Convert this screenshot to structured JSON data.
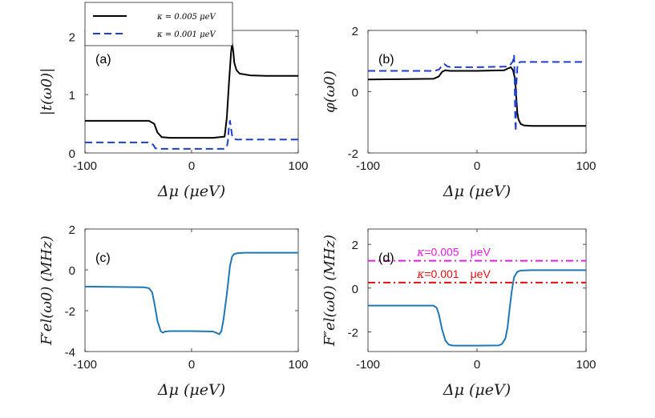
{
  "chart_data": [
    {
      "id": "a",
      "type": "line",
      "panel_label": "(a)",
      "xlabel": "Δμ (μeV)",
      "ylabel": "|t(ω0)|",
      "xlim": [
        -100,
        100
      ],
      "ylim": [
        0,
        2.1
      ],
      "xticks": [
        -100,
        0,
        100
      ],
      "xtick_labels": [
        "-100",
        "0",
        "100"
      ],
      "yticks": [
        0,
        1,
        2
      ],
      "ytick_labels": [
        "0",
        "1",
        "2"
      ],
      "legend": {
        "position": "top-left",
        "entries": [
          "κ = 0.005 μeV",
          "κ = 0.001 μeV"
        ]
      },
      "series": [
        {
          "name": "κ = 0.005 μeV",
          "color": "#000000",
          "style": "solid",
          "x": [
            -100,
            -40,
            -35,
            -32,
            -28,
            -20,
            0,
            20,
            31,
            33,
            35,
            37,
            38,
            39,
            40,
            42,
            45,
            55,
            70,
            100
          ],
          "y": [
            0.55,
            0.55,
            0.5,
            0.35,
            0.27,
            0.26,
            0.26,
            0.26,
            0.28,
            0.6,
            1.2,
            1.72,
            1.88,
            1.75,
            1.55,
            1.42,
            1.36,
            1.33,
            1.32,
            1.32
          ]
        },
        {
          "name": "κ = 0.001 μeV",
          "color": "#1f3fcf",
          "style": "dashed",
          "x": [
            -100,
            -40,
            -36,
            -34,
            -30,
            0,
            30,
            33,
            34,
            35,
            36,
            37,
            38,
            39,
            40,
            42,
            100
          ],
          "y": [
            0.18,
            0.18,
            0.14,
            0.08,
            0.07,
            0.07,
            0.07,
            0.1,
            0.2,
            0.45,
            0.55,
            0.42,
            0.3,
            0.26,
            0.24,
            0.23,
            0.23
          ]
        }
      ]
    },
    {
      "id": "b",
      "type": "line",
      "panel_label": "(b)",
      "xlabel": "Δμ (μeV)",
      "ylabel": "φ(ω0)",
      "xlim": [
        -100,
        100
      ],
      "ylim": [
        -2,
        2
      ],
      "xticks": [
        -100,
        0,
        100
      ],
      "xtick_labels": [
        "-100",
        "0",
        "100"
      ],
      "yticks": [
        -2,
        0,
        2
      ],
      "ytick_labels": [
        "-2",
        "0",
        "2"
      ],
      "series": [
        {
          "name": "κ = 0.005 μeV",
          "color": "#000000",
          "style": "solid",
          "x": [
            -100,
            -40,
            -35,
            -32,
            -29,
            -25,
            0,
            25,
            31,
            33,
            35,
            36,
            37,
            38,
            40,
            43,
            50,
            70,
            100
          ],
          "y": [
            0.4,
            0.42,
            0.5,
            0.65,
            0.7,
            0.68,
            0.68,
            0.7,
            0.8,
            0.7,
            0.4,
            -0.2,
            -0.7,
            -0.9,
            -1.05,
            -1.1,
            -1.12,
            -1.12,
            -1.12
          ]
        },
        {
          "name": "κ = 0.001 μeV",
          "color": "#1f3fcf",
          "style": "dashed",
          "x": [
            -100,
            -40,
            -35,
            -32,
            -30,
            -27,
            -24,
            0,
            28,
            31,
            33,
            34,
            34.5,
            35,
            35.5,
            36,
            37,
            38,
            40,
            45,
            100
          ],
          "y": [
            0.68,
            0.68,
            0.72,
            0.85,
            0.9,
            0.82,
            0.8,
            0.8,
            0.82,
            0.9,
            1.0,
            1.2,
            0.5,
            -0.8,
            -1.3,
            0.2,
            0.8,
            0.95,
            0.97,
            0.97,
            0.97
          ]
        }
      ]
    },
    {
      "id": "c",
      "type": "line",
      "panel_label": "(c)",
      "xlabel": "Δμ (μeV)",
      "ylabel": "F′el(ω0) (MHz)",
      "xlim": [
        -100,
        100
      ],
      "ylim": [
        -4,
        2
      ],
      "xticks": [
        -100,
        0,
        100
      ],
      "xtick_labels": [
        "-100",
        "0",
        "100"
      ],
      "yticks": [
        -4,
        -2,
        0,
        2
      ],
      "ytick_labels": [
        "-4",
        "-2",
        "0",
        "2"
      ],
      "series": [
        {
          "name": "F′el",
          "color": "#1f77b4",
          "style": "solid",
          "x": [
            -100,
            -45,
            -40,
            -37,
            -35,
            -32,
            -29,
            -27,
            -25,
            -20,
            0,
            20,
            24,
            26,
            28,
            30,
            33,
            36,
            38,
            40,
            43,
            50,
            100
          ],
          "y": [
            -0.82,
            -0.85,
            -0.9,
            -1.1,
            -1.6,
            -2.5,
            -3.0,
            -3.08,
            -3.02,
            -3.0,
            -3.0,
            -3.02,
            -3.1,
            -3.15,
            -3.0,
            -2.4,
            -1.2,
            0.2,
            0.65,
            0.78,
            0.82,
            0.84,
            0.84
          ]
        }
      ]
    },
    {
      "id": "d",
      "type": "line",
      "panel_label": "(d)",
      "xlabel": "Δμ (μeV)",
      "ylabel": "F″el(ω0) (MHz)",
      "xlim": [
        -100,
        100
      ],
      "ylim": [
        -2.9,
        2.7
      ],
      "xticks": [
        -100,
        0,
        100
      ],
      "xtick_labels": [
        "-100",
        "0",
        "100"
      ],
      "yticks": [
        -2,
        0,
        2
      ],
      "ytick_labels": [
        "-2",
        "0",
        "2"
      ],
      "series": [
        {
          "name": "F″el",
          "color": "#1f77b4",
          "style": "solid",
          "x": [
            -100,
            -45,
            -40,
            -37,
            -35,
            -32,
            -29,
            -26,
            -23,
            -20,
            0,
            20,
            23,
            26,
            28,
            30,
            32,
            34,
            37,
            40,
            50,
            100
          ],
          "y": [
            -0.8,
            -0.8,
            -0.8,
            -0.9,
            -1.2,
            -1.9,
            -2.4,
            -2.58,
            -2.62,
            -2.63,
            -2.63,
            -2.62,
            -2.55,
            -2.3,
            -1.8,
            -0.9,
            -0.1,
            0.5,
            0.75,
            0.8,
            0.82,
            0.82
          ]
        },
        {
          "name": "κ=0.005 μeV",
          "color": "#e020e0",
          "style": "dashdot",
          "x": [
            -100,
            100
          ],
          "y": [
            1.25,
            1.25
          ]
        },
        {
          "name": "κ=0.001 μeV",
          "color": "#e01010",
          "style": "dashdot",
          "x": [
            -100,
            100
          ],
          "y": [
            0.25,
            0.25
          ]
        }
      ],
      "annotations": [
        {
          "text_kappa": "κ",
          "text_value": "=0.005",
          "text_unit": "μeV",
          "color": "#e020e0",
          "x": -55,
          "y": 1.25
        },
        {
          "text_kappa": "κ",
          "text_value": "=0.001",
          "text_unit": "μeV",
          "color": "#e01010",
          "x": -55,
          "y": 0.25
        }
      ]
    }
  ]
}
